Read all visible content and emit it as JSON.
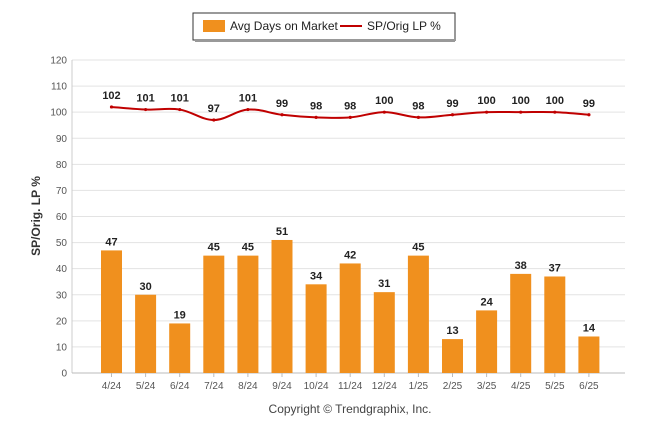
{
  "chart_data": {
    "type": "bar",
    "categories": [
      "4/24",
      "5/24",
      "6/24",
      "7/24",
      "8/24",
      "9/24",
      "10/24",
      "11/24",
      "12/24",
      "1/25",
      "2/25",
      "3/25",
      "4/25",
      "5/25",
      "6/25"
    ],
    "series": [
      {
        "name": "Avg Days on Market",
        "type": "bar",
        "color": "#F0901E",
        "values": [
          47,
          30,
          19,
          45,
          45,
          51,
          34,
          42,
          31,
          45,
          13,
          24,
          38,
          37,
          14
        ]
      },
      {
        "name": "SP/Orig LP %",
        "type": "line",
        "color": "#C00000",
        "values": [
          102,
          101,
          101,
          97,
          101,
          99,
          98,
          98,
          100,
          98,
          99,
          100,
          100,
          100,
          99
        ]
      }
    ],
    "ylabel": "SP/Orig. LP %",
    "ylim": [
      0,
      120
    ],
    "yticks": [
      0,
      10,
      20,
      30,
      40,
      50,
      60,
      70,
      80,
      90,
      100,
      110,
      120
    ],
    "grid": true,
    "legend_position": "top-center"
  },
  "footer": {
    "copyright": "Copyright © Trendgraphix, Inc."
  }
}
